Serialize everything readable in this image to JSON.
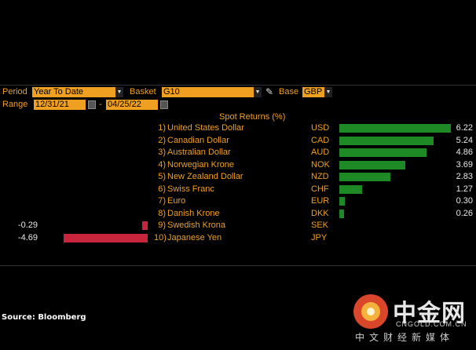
{
  "controls": {
    "period_label": "Period",
    "period_value": "Year To Date",
    "basket_label": "Basket",
    "basket_value": "G10",
    "base_label": "Base",
    "base_value": "GBP",
    "range_label": "Range",
    "range_start": "12/31/21",
    "range_sep": "-",
    "range_end": "04/25/22"
  },
  "chart_data": {
    "type": "bar",
    "title": "Spot Returns (%)",
    "rows": [
      {
        "rank": "1)",
        "name": "United States Dollar",
        "code": "USD",
        "value": 6.22,
        "label": "6.22"
      },
      {
        "rank": "2)",
        "name": "Canadian Dollar",
        "code": "CAD",
        "value": 5.24,
        "label": "5.24"
      },
      {
        "rank": "3)",
        "name": "Australian Dollar",
        "code": "AUD",
        "value": 4.86,
        "label": "4.86"
      },
      {
        "rank": "4)",
        "name": "Norwegian Krone",
        "code": "NOK",
        "value": 3.69,
        "label": "3.69"
      },
      {
        "rank": "5)",
        "name": "New Zealand Dollar",
        "code": "NZD",
        "value": 2.83,
        "label": "2.83"
      },
      {
        "rank": "6)",
        "name": "Swiss Franc",
        "code": "CHF",
        "value": 1.27,
        "label": "1.27"
      },
      {
        "rank": "7)",
        "name": "Euro",
        "code": "EUR",
        "value": 0.3,
        "label": "0.30"
      },
      {
        "rank": "8)",
        "name": "Danish Krone",
        "code": "DKK",
        "value": 0.26,
        "label": "0.26"
      },
      {
        "rank": "9)",
        "name": "Swedish Krona",
        "code": "SEK",
        "value": -0.29,
        "label": "-0.29"
      },
      {
        "rank": "10)",
        "name": "Japanese Yen",
        "code": "JPY",
        "value": -4.69,
        "label": "-4.69"
      }
    ]
  },
  "footer": {
    "source": "Source: Bloomberg"
  },
  "watermark": {
    "cn": "中金网",
    "en": "CNGOLD.COM.CN",
    "sub": "中文财经新媒体"
  },
  "colors": {
    "positive": "#1e8a26",
    "negative": "#c8243c",
    "accent": "#f0a020"
  }
}
